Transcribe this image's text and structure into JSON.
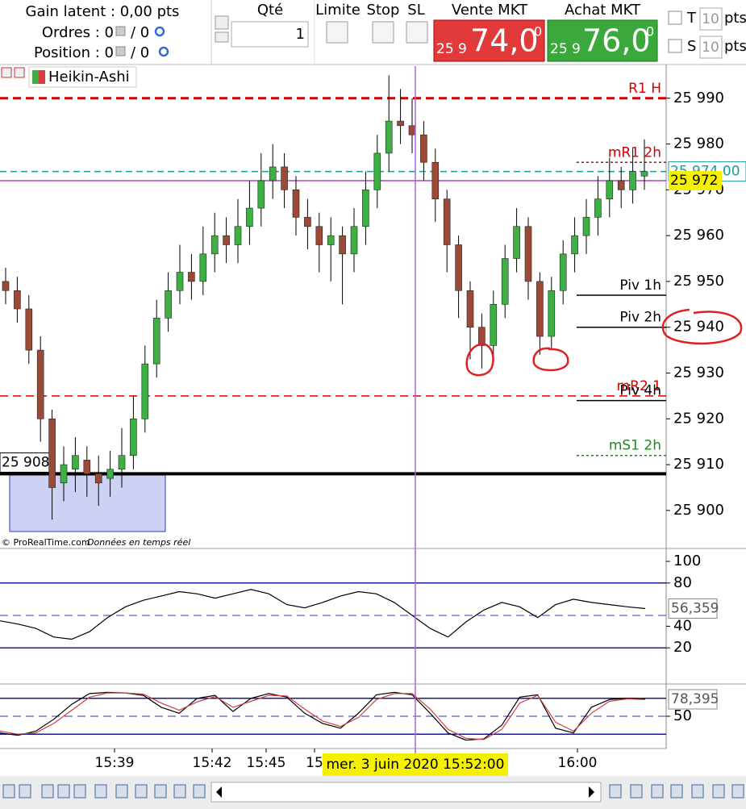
{
  "header": {
    "gain_latent": "Gain latent :  0,00 pts",
    "ordres": "Ordres : 0",
    "ordres_b": "/ 0",
    "position": "Position : 0",
    "position_b": "/ 0",
    "qte_label": "Qté",
    "qte_value": "1",
    "limite": "Limite",
    "stop": "Stop",
    "sl": "SL",
    "vente_label": "Vente MKT",
    "vente_small": "25 9",
    "vente_big": "74,0",
    "vente_sup": "0",
    "achat_label": "Achat MKT",
    "achat_small": "25 9",
    "achat_big": "76,0",
    "achat_sup": "0",
    "t_label": "T",
    "t_value": "10",
    "s_label": "S",
    "s_value": "10",
    "pts": "pts"
  },
  "chart_data": {
    "type": "candlestick",
    "indicator": "Heikin-Ashi",
    "credit": "© ProRealTime.com",
    "credit_note": "Données en temps réel",
    "open": [
      25950,
      25948,
      25944,
      25935,
      25920,
      25906,
      25909,
      25911,
      25908,
      25907,
      25909,
      25912,
      25920,
      25932,
      25942,
      25948,
      25952,
      25950,
      25956,
      25960,
      25958,
      25962,
      25966,
      25972,
      25975,
      25970,
      25964,
      25962,
      25958,
      25960,
      25956,
      25962,
      25970,
      25978,
      25985,
      25984,
      25982,
      25976,
      25968,
      25958,
      25948,
      25940,
      25936,
      25945,
      25955,
      25962,
      25950,
      25938,
      25948,
      25956,
      25960,
      25964,
      25968,
      25972,
      25970,
      25973
    ],
    "high": [
      25953,
      25951,
      25947,
      25938,
      25922,
      25914,
      25916,
      25914,
      25912,
      25913,
      25918,
      25925,
      25936,
      25946,
      25952,
      25958,
      25956,
      25962,
      25965,
      25964,
      25968,
      25972,
      25978,
      25980,
      25978,
      25973,
      25968,
      25965,
      25964,
      25962,
      25966,
      25974,
      25982,
      25995,
      25992,
      25990,
      25985,
      25979,
      25970,
      25960,
      25950,
      25943,
      25948,
      25958,
      25966,
      25964,
      25952,
      25951,
      25959,
      25964,
      25968,
      25973,
      25977,
      25975,
      25979,
      25981
    ],
    "low": [
      25945,
      25941,
      25932,
      25915,
      25898,
      25902,
      25904,
      25903,
      25901,
      25903,
      25905,
      25909,
      25917,
      25929,
      25939,
      25945,
      25946,
      25947,
      25952,
      25954,
      25954,
      25958,
      25962,
      25968,
      25966,
      25960,
      25957,
      25952,
      25950,
      25945,
      25952,
      25958,
      25966,
      25974,
      25980,
      25978,
      25972,
      25963,
      25952,
      25942,
      25933,
      25931,
      25933,
      25942,
      25952,
      25946,
      25934,
      25935,
      25945,
      25952,
      25956,
      25960,
      25964,
      25966,
      25967,
      25970
    ],
    "close": [
      25948,
      25944,
      25935,
      25920,
      25905,
      25910,
      25912,
      25908,
      25906,
      25909,
      25912,
      25920,
      25932,
      25942,
      25948,
      25952,
      25950,
      25956,
      25960,
      25958,
      25962,
      25966,
      25972,
      25975,
      25970,
      25964,
      25962,
      25958,
      25960,
      25956,
      25962,
      25970,
      25978,
      25985,
      25984,
      25982,
      25976,
      25968,
      25958,
      25948,
      25940,
      25936,
      25945,
      25955,
      25962,
      25950,
      25938,
      25948,
      25956,
      25960,
      25964,
      25968,
      25972,
      25970,
      25974,
      25974
    ],
    "up_color": "#3cb043",
    "down_color": "#9a4a36",
    "ylim": [
      25891.7,
      25997
    ],
    "yticks": [
      {
        "value": 25900,
        "label": "25 900"
      },
      {
        "value": 25910,
        "label": "25 910"
      },
      {
        "value": 25920,
        "label": "25 920"
      },
      {
        "value": 25930,
        "label": "25 930"
      },
      {
        "value": 25940,
        "label": "25 940"
      },
      {
        "value": 25950,
        "label": "25 950"
      },
      {
        "value": 25960,
        "label": "25 960"
      },
      {
        "value": 25970,
        "label": "25 970"
      },
      {
        "value": 25980,
        "label": "25 980"
      },
      {
        "value": 25990,
        "label": "25 990"
      }
    ],
    "levels": [
      {
        "label": "R1 H",
        "value": 25990,
        "color": "#d40000",
        "style": "dashed",
        "extent": "full"
      },
      {
        "label": "mR1 2h",
        "value": 25976,
        "color": "#d40000",
        "style": "dotted",
        "extent": "short"
      },
      {
        "label": "Piv 1h",
        "value": 25947,
        "color": "#000000",
        "style": "solid",
        "extent": "short"
      },
      {
        "label": "Piv 2h",
        "value": 25940,
        "color": "#000000",
        "style": "solid",
        "extent": "short"
      },
      {
        "label": "mR2 1",
        "value": 25925,
        "color": "#d40000",
        "style": "dashed",
        "extent": "full"
      },
      {
        "label": "Piv 4h",
        "value": 25924,
        "color": "#000000",
        "style": "solid",
        "extent": "short"
      },
      {
        "label": "mS1 2h",
        "value": 25912,
        "color": "#1a8a1a",
        "style": "dotted",
        "extent": "short"
      }
    ],
    "price_labels": [
      {
        "value": 25974,
        "label": "25 974,00",
        "color": "#1a9a9a",
        "box": "#ffffff",
        "side": "right"
      },
      {
        "value": 25972,
        "label": "25 972",
        "color": "#b040c0",
        "box": "#f5f000",
        "side": "right"
      },
      {
        "value": 25908,
        "label": "25 908",
        "color": "#000000",
        "box": "#ffffff",
        "side": "left"
      }
    ],
    "x_labels": [
      "15:39",
      "15:42",
      "15:45",
      "15",
      "16:00"
    ],
    "cursor_label": "mer. 3 juin 2020 15:52:00"
  },
  "rsi": {
    "values": [
      45,
      42,
      38,
      30,
      28,
      35,
      48,
      58,
      64,
      68,
      72,
      70,
      66,
      70,
      74,
      70,
      60,
      57,
      62,
      68,
      72,
      70,
      62,
      50,
      38,
      30,
      44,
      55,
      62,
      58,
      48,
      60,
      65,
      62,
      60,
      58,
      56.359
    ],
    "color": "#000000",
    "ylim": [
      0,
      100
    ],
    "yticks": [
      20,
      40,
      80,
      100
    ],
    "levels": [
      {
        "value": 80,
        "style": "solid"
      },
      {
        "value": 50,
        "style": "dashed"
      },
      {
        "value": 20,
        "style": "solid"
      }
    ],
    "last": {
      "value": 56.359,
      "label": "56,359"
    }
  },
  "stochastic": {
    "series": [
      {
        "color": "#000000",
        "values": [
          22,
          18,
          25,
          45,
          70,
          88,
          90,
          89,
          85,
          65,
          55,
          80,
          85,
          58,
          80,
          88,
          82,
          55,
          38,
          30,
          55,
          86,
          90,
          86,
          55,
          22,
          10,
          12,
          35,
          82,
          86,
          30,
          22,
          65,
          78,
          80,
          78.395
        ]
      },
      {
        "color": "#d04040",
        "values": [
          25,
          20,
          22,
          38,
          60,
          82,
          89,
          89,
          87,
          72,
          60,
          74,
          83,
          65,
          75,
          85,
          84,
          62,
          42,
          33,
          48,
          78,
          88,
          88,
          62,
          28,
          13,
          11,
          28,
          72,
          85,
          40,
          25,
          55,
          75,
          79,
          78
        ]
      }
    ],
    "ylim": [
      0,
      100
    ],
    "yticks": [
      50
    ],
    "levels": [
      {
        "value": 80,
        "style": "solid"
      },
      {
        "value": 50,
        "style": "dashed"
      },
      {
        "value": 20,
        "style": "solid"
      }
    ],
    "last": {
      "value": 78.395,
      "label": "78,395"
    }
  }
}
